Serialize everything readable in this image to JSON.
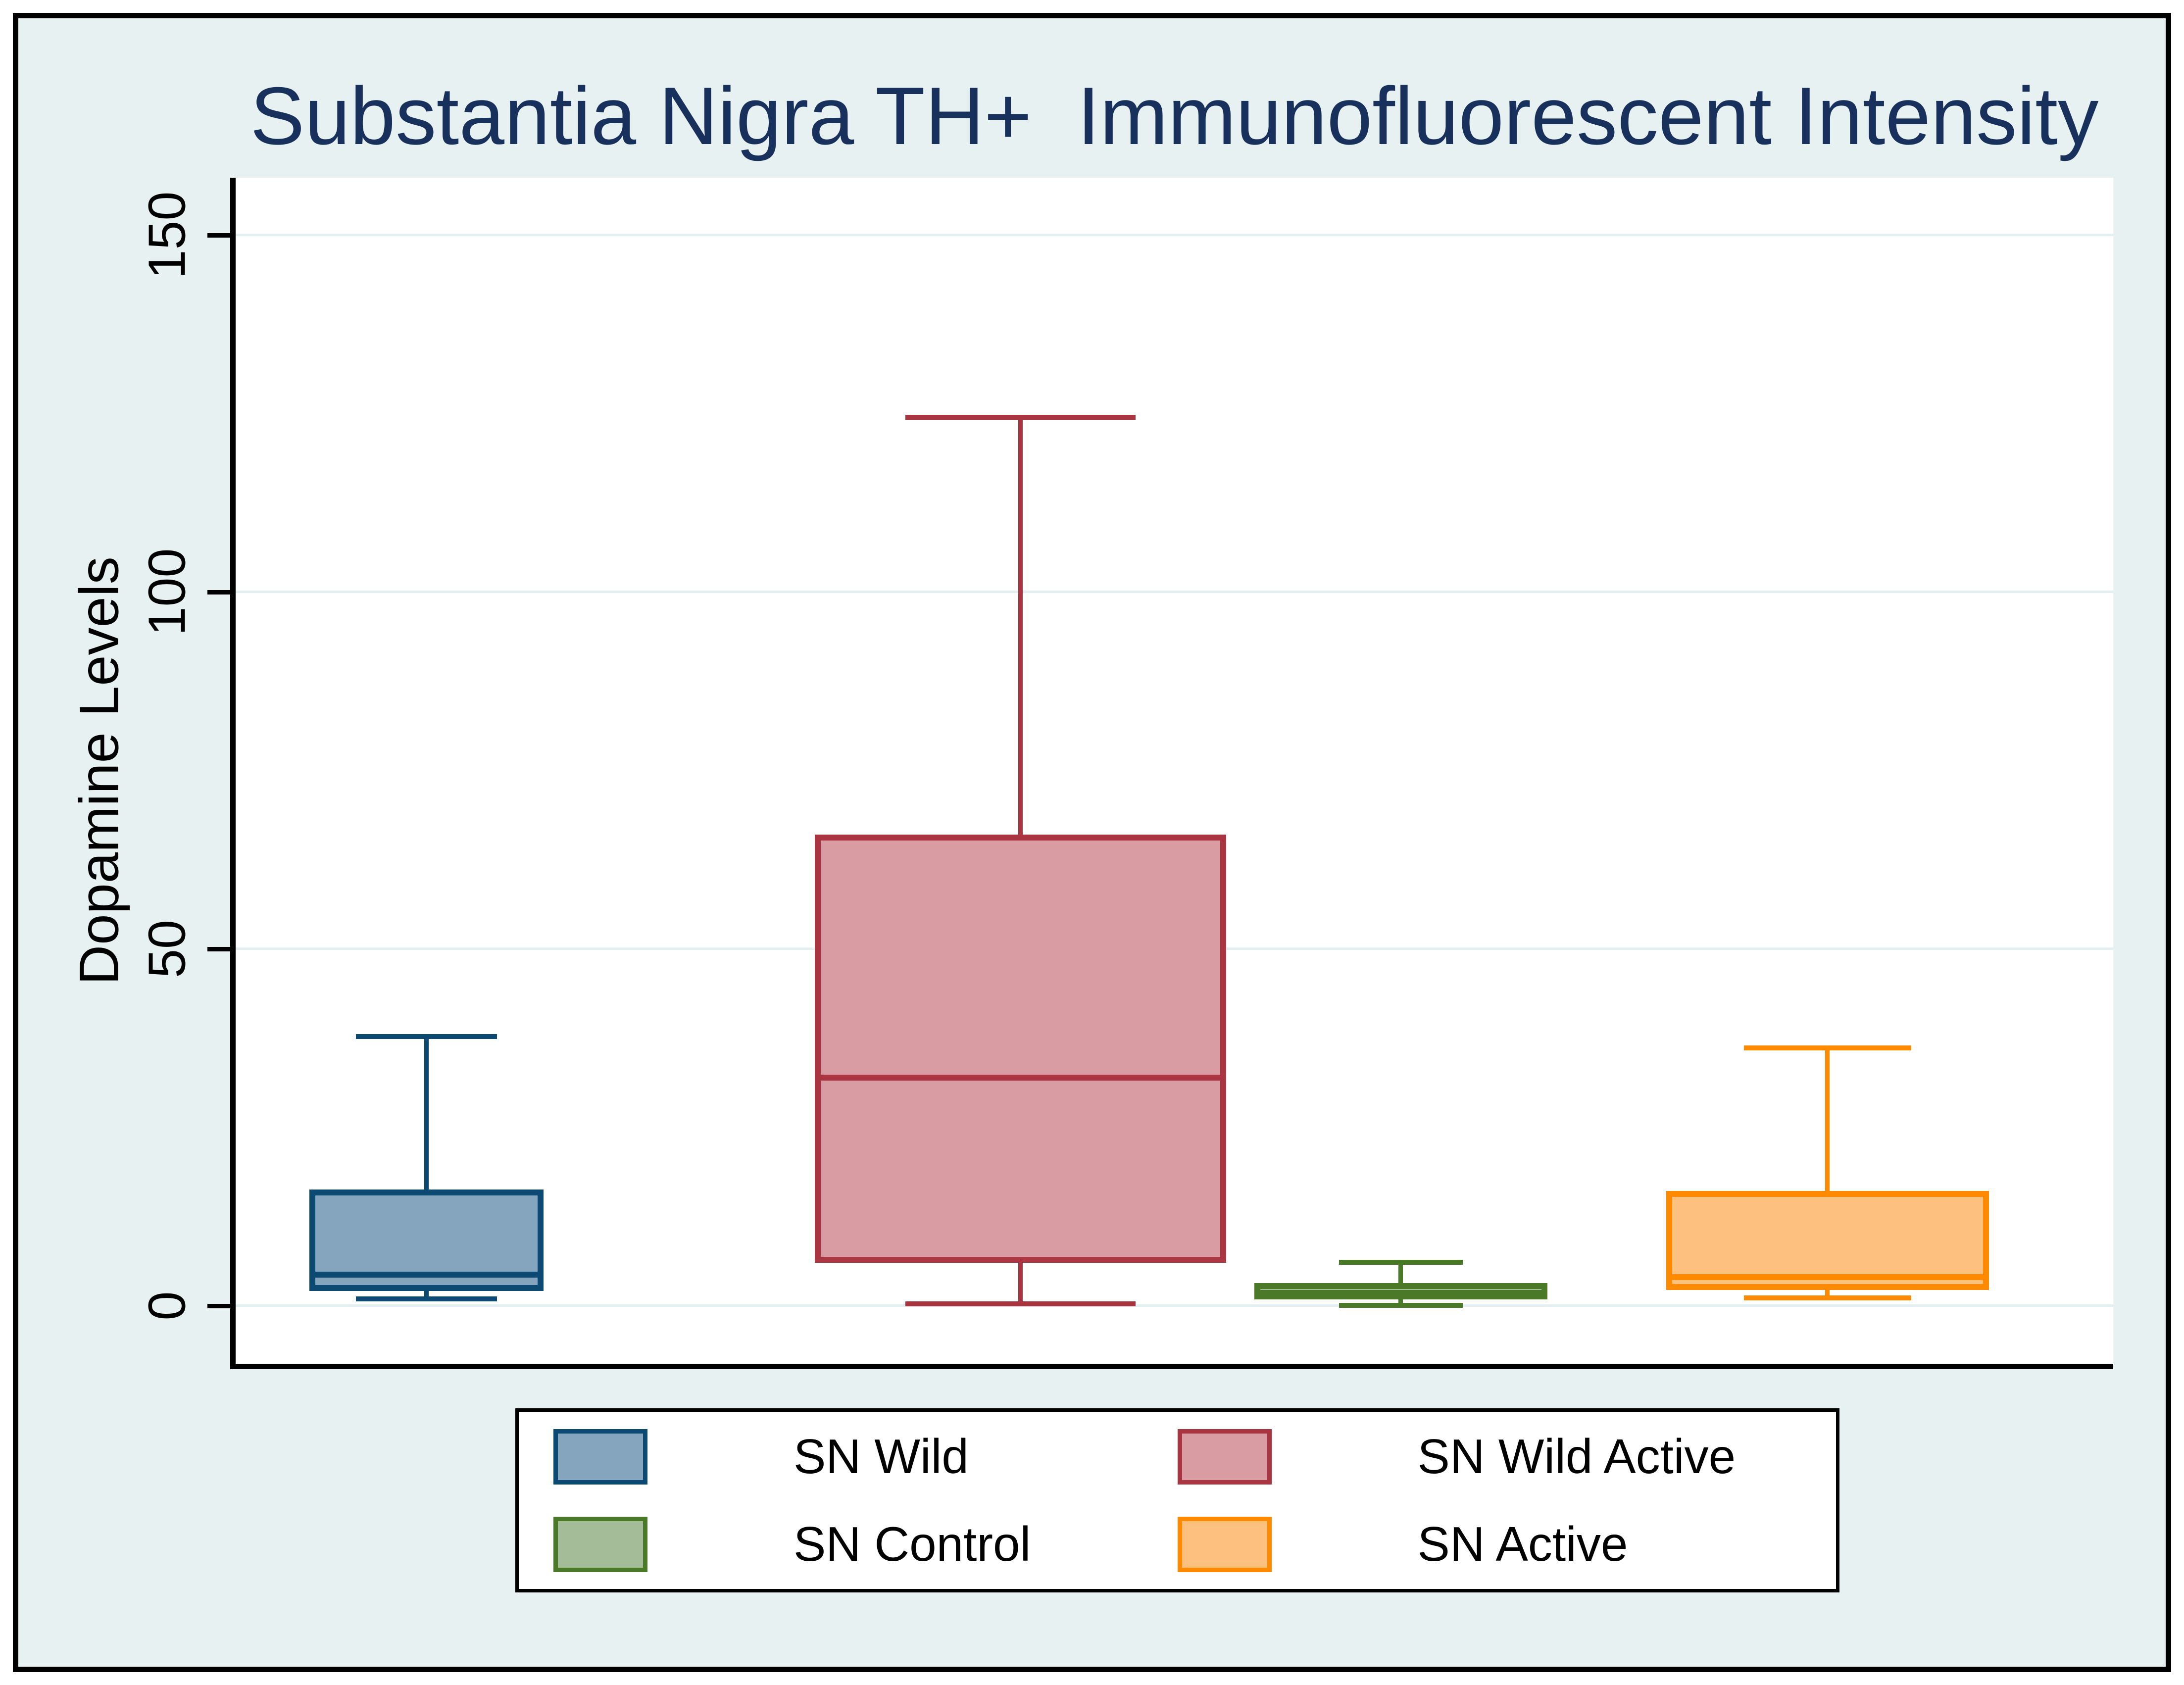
{
  "title": "Substantia Nigra TH+  Immunofluorescent Intensity",
  "colors": {
    "bg": "#E8F1F2",
    "plot_bg": "#FFFFFF",
    "grid": "#E4EFF1",
    "axis": "#000000",
    "frame": "#000000",
    "title": "#17315C",
    "text": "#000000",
    "legend_bg": "#FFFFFF"
  },
  "chart_data": {
    "type": "boxplot",
    "title": "Substantia Nigra TH+  Immunofluorescent Intensity",
    "xlabel": "",
    "ylabel": "Dopamine Levels",
    "ylim": [
      -8,
      158
    ],
    "yticks": [
      0,
      50,
      100,
      150
    ],
    "grid": true,
    "legend_position": "bottom",
    "series": [
      {
        "name": "SN Wild",
        "fill": "#85A4BD",
        "stroke": "#0D4A73",
        "stats": {
          "low": 1.0,
          "q1": 2.1,
          "median": 4.4,
          "q3": 16.3,
          "high": 37.7
        },
        "layout": {
          "x_center_frac": 0.1016,
          "box_width_frac": 0.1247,
          "cap_width_frac": 0.0751
        }
      },
      {
        "name": "SN Wild Active",
        "fill": "#D99CA3",
        "stroke": "#A8353F",
        "stats": {
          "low": 0.3,
          "q1": 6.0,
          "median": 32.0,
          "q3": 66.0,
          "high": 124.5
        },
        "layout": {
          "x_center_frac": 0.418,
          "box_width_frac": 0.219,
          "cap_width_frac": 0.1226
        }
      },
      {
        "name": "SN Control",
        "fill": "#A5BC98",
        "stroke": "#4A7A28",
        "stats": {
          "low": 0.1,
          "q1": 0.9,
          "median": 1.8,
          "q3": 3.2,
          "high": 6.1
        },
        "layout": {
          "x_center_frac": 0.6206,
          "box_width_frac": 0.156,
          "cap_width_frac": 0.0659
        }
      },
      {
        "name": "SN Active",
        "fill": "#FEC07E",
        "stroke": "#FF8A00",
        "stats": {
          "low": 1.1,
          "q1": 2.2,
          "median": 4.0,
          "q3": 16.1,
          "high": 36.1
        },
        "layout": {
          "x_center_frac": 0.8478,
          "box_width_frac": 0.172,
          "cap_width_frac": 0.0891
        }
      }
    ]
  }
}
